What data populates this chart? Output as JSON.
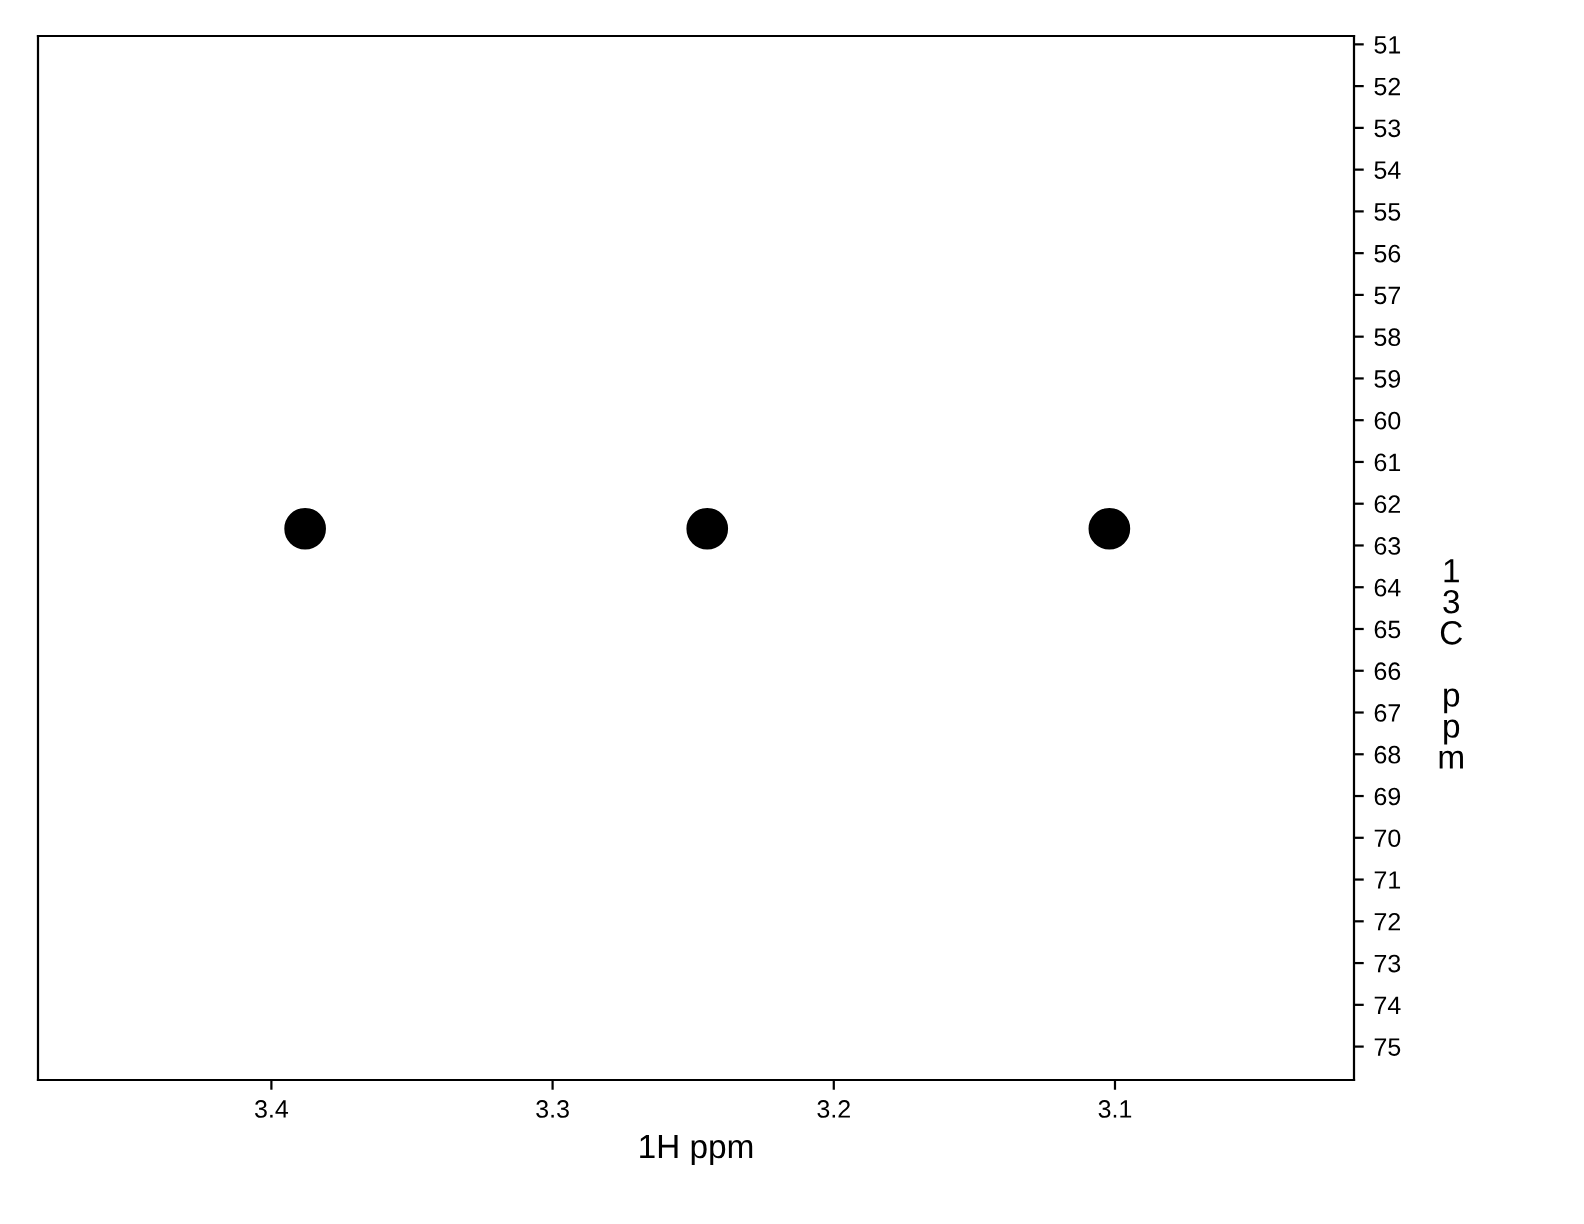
{
  "chart_data": {
    "type": "scatter",
    "xlabel": "1H ppm",
    "ylabel": "13C ppm",
    "x": [
      3.388,
      3.245,
      3.102
    ],
    "series": [
      {
        "color": "#000000",
        "values": [
          62.6,
          62.6,
          62.6
        ]
      }
    ],
    "marker": "circle",
    "xlim": [
      3.483,
      3.015
    ],
    "xticks": [
      3.4,
      3.3,
      3.2,
      3.1
    ],
    "ylim": [
      75.8,
      50.8
    ],
    "yticks": [
      51,
      52,
      53,
      54,
      55,
      56,
      57,
      58,
      59,
      60,
      61,
      62,
      63,
      64,
      65,
      66,
      67,
      68,
      69,
      70,
      71,
      72,
      73,
      74,
      75
    ],
    "grid": false,
    "legend": false
  }
}
